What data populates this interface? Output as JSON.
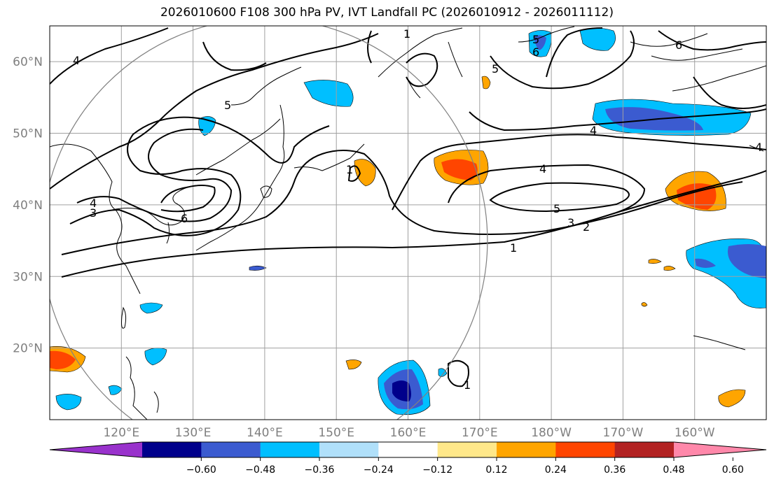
{
  "title": "2026010600 F108 300 hPa PV, IVT Landfall PC (2026010912 - 2026011112)",
  "map": {
    "lon_range": [
      110,
      210
    ],
    "lat_range": [
      10,
      65
    ],
    "lat_ticks": [
      {
        "value": 60,
        "label": "60°N"
      },
      {
        "value": 50,
        "label": "50°N"
      },
      {
        "value": 40,
        "label": "40°N"
      },
      {
        "value": 30,
        "label": "30°N"
      },
      {
        "value": 20,
        "label": "20°N"
      }
    ],
    "lon_ticks": [
      {
        "value": 120,
        "label": "120°E"
      },
      {
        "value": 130,
        "label": "130°E"
      },
      {
        "value": 140,
        "label": "140°E"
      },
      {
        "value": 150,
        "label": "150°E"
      },
      {
        "value": 160,
        "label": "160°E"
      },
      {
        "value": 170,
        "label": "170°E"
      },
      {
        "value": 180,
        "label": "180°W"
      },
      {
        "value": 190,
        "label": "170°W"
      },
      {
        "value": 200,
        "label": "160°W"
      }
    ],
    "gridlines": true,
    "circle_center": {
      "lon": 140,
      "lat": 35
    },
    "contour_labels": [
      "4",
      "5",
      "6",
      "4",
      "3",
      "1",
      "5",
      "6",
      "5",
      "4",
      "6",
      "1",
      "4",
      "5",
      "3",
      "2",
      "1",
      "4",
      "1"
    ],
    "colors": {
      "grid": "#a0a0a0",
      "coast": "#000000",
      "contour": "#000000",
      "circle": "#808080"
    }
  },
  "colorbar": {
    "colors": [
      "#9932cc",
      "#00008b",
      "#3b5bd0",
      "#00bfff",
      "#b0e0fa",
      "#ffffff",
      "#ffe88a",
      "#ffa500",
      "#ff4500",
      "#b22222",
      "#ff88aa"
    ],
    "tick_labels": [
      "−0.60",
      "−0.48",
      "−0.36",
      "−0.24",
      "−0.12",
      "0.12",
      "0.24",
      "0.36",
      "0.48",
      "0.60"
    ]
  }
}
